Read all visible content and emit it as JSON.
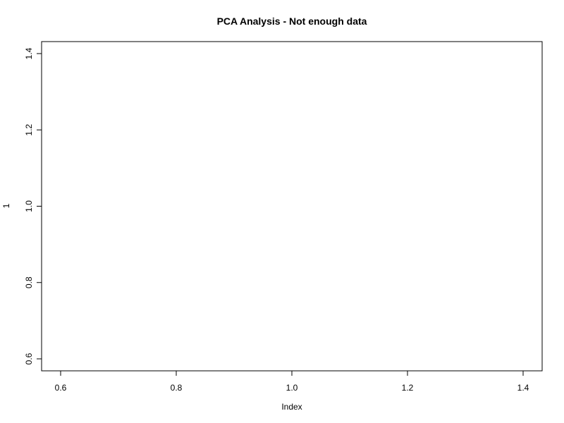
{
  "chart_data": {
    "type": "scatter",
    "title": "PCA Analysis - Not enough data",
    "xlabel": "Index",
    "ylabel": "1",
    "xlim": [
      0.6,
      1.4
    ],
    "ylim": [
      0.6,
      1.4
    ],
    "x_ticks": [
      0.6,
      0.8,
      1.0,
      1.2,
      1.4
    ],
    "x_tick_labels": [
      "0.6",
      "0.8",
      "1.0",
      "1.2",
      "1.4"
    ],
    "y_ticks": [
      0.6,
      0.8,
      1.0,
      1.2,
      1.4
    ],
    "y_tick_labels": [
      "0.6",
      "0.8",
      "1.0",
      "1.2",
      "1.4"
    ],
    "points": [],
    "grid": false,
    "legend": "none"
  }
}
